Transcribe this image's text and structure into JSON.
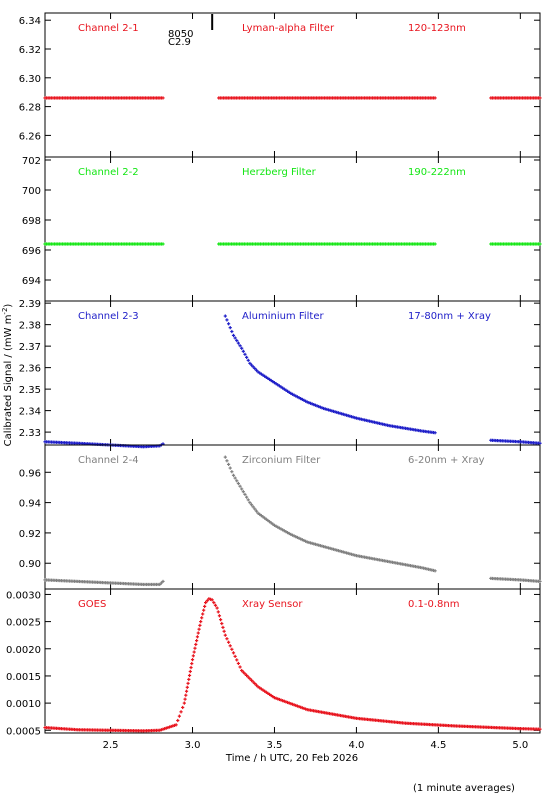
{
  "figure": {
    "ylabel": "Calibrated Signal / (mW m",
    "ylabel_sup": "-2",
    "ylabel_close": ")",
    "xlabel": "Time / h UTC, 20 Feb 2026",
    "footnote": "(1 minute averages)",
    "xlim": [
      2.1,
      5.12
    ],
    "xticks": [
      "2.5",
      "3.0",
      "3.5",
      "4.0",
      "4.5",
      "5.0"
    ],
    "xtick_values": [
      2.5,
      3.0,
      3.5,
      4.0,
      4.5,
      5.0
    ],
    "marker_label_1": "8050",
    "marker_label_2": "C2.9",
    "marker_time": 3.12
  },
  "chart_data": [
    {
      "type": "scatter",
      "channel": "Channel 2-1",
      "filter": "Lyman-alpha Filter",
      "band": "120-123nm",
      "color": "#e8141e",
      "ylim": [
        6.245,
        6.345
      ],
      "yticks": [
        6.26,
        6.28,
        6.3,
        6.32,
        6.34
      ],
      "yticklabels": [
        "6.26",
        "6.28",
        "6.30",
        "6.32",
        "6.34"
      ],
      "segments": [
        {
          "x": [
            2.1,
            2.82
          ],
          "y": [
            6.286,
            6.286
          ]
        },
        {
          "x": [
            3.16,
            4.48
          ],
          "y": [
            6.286,
            6.286
          ]
        },
        {
          "x": [
            4.82,
            5.12
          ],
          "y": [
            6.286,
            6.286
          ]
        }
      ]
    },
    {
      "type": "scatter",
      "channel": "Channel 2-2",
      "filter": "Herzberg Filter",
      "band": "190-222nm",
      "color": "#14e614",
      "ylim": [
        692.6,
        702.2
      ],
      "yticks": [
        694,
        696,
        698,
        700,
        702
      ],
      "yticklabels": [
        "694",
        "696",
        "698",
        "700",
        "702"
      ],
      "segments": [
        {
          "x": [
            2.1,
            2.82
          ],
          "y": [
            696.4,
            696.4
          ]
        },
        {
          "x": [
            3.16,
            4.48
          ],
          "y": [
            696.4,
            696.4
          ]
        },
        {
          "x": [
            4.82,
            5.12
          ],
          "y": [
            696.4,
            696.4
          ]
        }
      ]
    },
    {
      "type": "scatter",
      "channel": "Channel 2-3",
      "filter": "Aluminium Filter",
      "band": "17-80nm + Xray",
      "color": "#1e1ec8",
      "ylim": [
        2.324,
        2.391
      ],
      "yticks": [
        2.33,
        2.34,
        2.35,
        2.36,
        2.37,
        2.38,
        2.39
      ],
      "yticklabels": [
        "2.33",
        "2.34",
        "2.35",
        "2.36",
        "2.37",
        "2.38",
        "2.39"
      ],
      "segments": [
        {
          "x": [
            2.1,
            2.3,
            2.5,
            2.7,
            2.8,
            2.82
          ],
          "y": [
            2.3255,
            2.3248,
            2.324,
            2.3232,
            2.3236,
            2.3245
          ]
        },
        {
          "x": [
            3.2,
            3.25,
            3.3,
            3.35,
            3.4,
            3.5,
            3.6,
            3.7,
            3.8,
            4.0,
            4.2,
            4.4,
            4.48
          ],
          "y": [
            2.384,
            2.375,
            2.369,
            2.362,
            2.358,
            2.353,
            2.348,
            2.344,
            2.341,
            2.3365,
            2.333,
            2.3305,
            2.3297
          ]
        },
        {
          "x": [
            4.82,
            5.0,
            5.12
          ],
          "y": [
            2.3262,
            2.3255,
            2.3248
          ]
        }
      ]
    },
    {
      "type": "scatter",
      "channel": "Channel 2-4",
      "filter": "Zirconium Filter",
      "band": "6-20nm + Xray",
      "color": "#808080",
      "ylim": [
        0.883,
        0.978
      ],
      "yticks": [
        0.9,
        0.92,
        0.94,
        0.96
      ],
      "yticklabels": [
        "0.90",
        "0.92",
        "0.94",
        "0.96"
      ],
      "segments": [
        {
          "x": [
            2.1,
            2.3,
            2.5,
            2.7,
            2.8,
            2.82
          ],
          "y": [
            0.889,
            0.888,
            0.887,
            0.886,
            0.886,
            0.888
          ]
        },
        {
          "x": [
            3.2,
            3.25,
            3.3,
            3.35,
            3.4,
            3.5,
            3.6,
            3.7,
            3.8,
            4.0,
            4.2,
            4.4,
            4.48
          ],
          "y": [
            0.97,
            0.958,
            0.949,
            0.94,
            0.933,
            0.925,
            0.919,
            0.914,
            0.911,
            0.905,
            0.901,
            0.897,
            0.895
          ]
        },
        {
          "x": [
            4.82,
            5.0,
            5.12
          ],
          "y": [
            0.89,
            0.889,
            0.888
          ]
        }
      ]
    },
    {
      "type": "scatter",
      "channel": "GOES",
      "filter": "Xray Sensor",
      "band": "0.1-0.8nm",
      "color": "#e8141e",
      "ylim": [
        0.00045,
        0.0031
      ],
      "yticks": [
        0.0005,
        0.001,
        0.0015,
        0.002,
        0.0025,
        0.003
      ],
      "yticklabels": [
        "0.0005",
        "0.0010",
        "0.0015",
        "0.0020",
        "0.0025",
        "0.0030"
      ],
      "segments": [
        {
          "x": [
            2.1,
            2.3,
            2.5,
            2.7,
            2.8,
            2.9,
            2.95,
            3.0,
            3.05,
            3.08,
            3.1,
            3.12,
            3.15,
            3.2,
            3.3,
            3.4,
            3.5,
            3.7,
            4.0,
            4.3,
            4.6,
            5.0,
            5.12
          ],
          "y": [
            0.00055,
            0.00051,
            0.0005,
            0.00049,
            0.0005,
            0.0006,
            0.001,
            0.0018,
            0.0025,
            0.00285,
            0.00292,
            0.0029,
            0.00275,
            0.00225,
            0.0016,
            0.0013,
            0.0011,
            0.00088,
            0.00072,
            0.00063,
            0.00058,
            0.00053,
            0.00052
          ]
        }
      ]
    }
  ]
}
